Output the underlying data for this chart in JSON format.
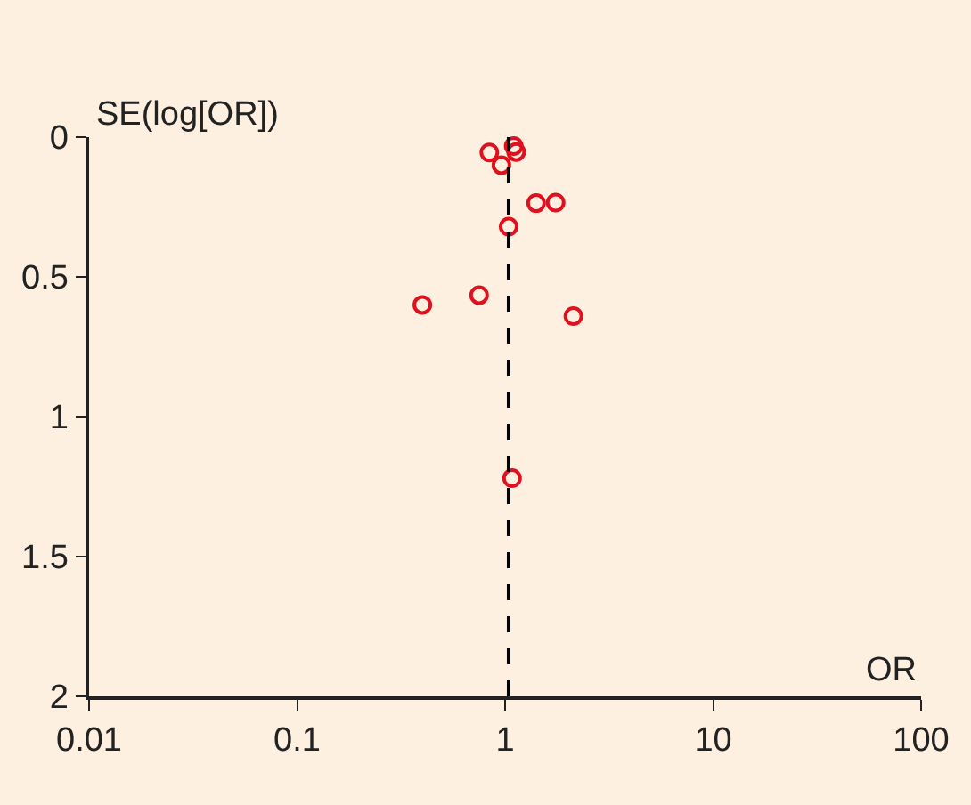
{
  "chart_data": {
    "type": "scatter",
    "xlabel": "OR",
    "ylabel": "SE(log[OR])",
    "x": [
      0.84,
      1.1,
      1.13,
      0.96,
      1.41,
      1.75,
      1.04,
      0.4,
      0.75,
      2.13,
      1.08
    ],
    "values": [
      0.055,
      0.032,
      0.053,
      0.1,
      0.236,
      0.234,
      0.32,
      0.6,
      0.565,
      0.64,
      1.22
    ],
    "color": "#e0101e",
    "marker": "circle",
    "log": "x",
    "grid": false,
    "legend": false,
    "xlim": [
      0.01,
      100
    ],
    "xticks": [
      0.01,
      0.1,
      1,
      10,
      100
    ],
    "ylim": [
      2,
      0
    ],
    "yticks": [
      0,
      0.5,
      1,
      1.5,
      2
    ],
    "ref_lines": [
      {
        "axis": "x",
        "value": 1.04,
        "color": "#000000",
        "line_style": "dashed"
      }
    ]
  }
}
